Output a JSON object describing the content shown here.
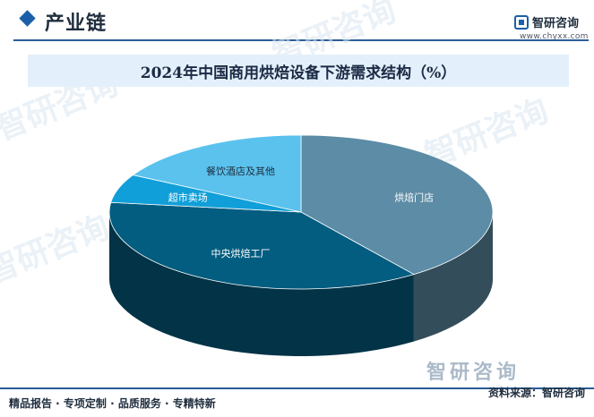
{
  "header": {
    "section_title": "产业链",
    "logo_text": "智研咨询",
    "site_url": "www.chyxx.com"
  },
  "watermark_text": "智研咨询",
  "chart_data": {
    "type": "pie",
    "title": "2024年中国商用烘焙设备下游需求结构（%）",
    "categories": [
      "烘焙门店",
      "中央烘焙工厂",
      "超市卖场",
      "餐饮酒店及其他"
    ],
    "values": [
      40,
      37,
      6,
      17
    ],
    "colors": [
      "#5c8ca6",
      "#035d80",
      "#109fd8",
      "#5bc2ee"
    ],
    "label_colors": [
      "#ffffff",
      "#ffffff",
      "#ffffff",
      "#1e2e3e"
    ],
    "legend": "none",
    "style": "3d-pie"
  },
  "footer": {
    "slogan": "精品报告 · 专项定制 · 品质服务 · 专精特新",
    "source": "资料来源：智研咨询",
    "brand": "智研咨询"
  }
}
